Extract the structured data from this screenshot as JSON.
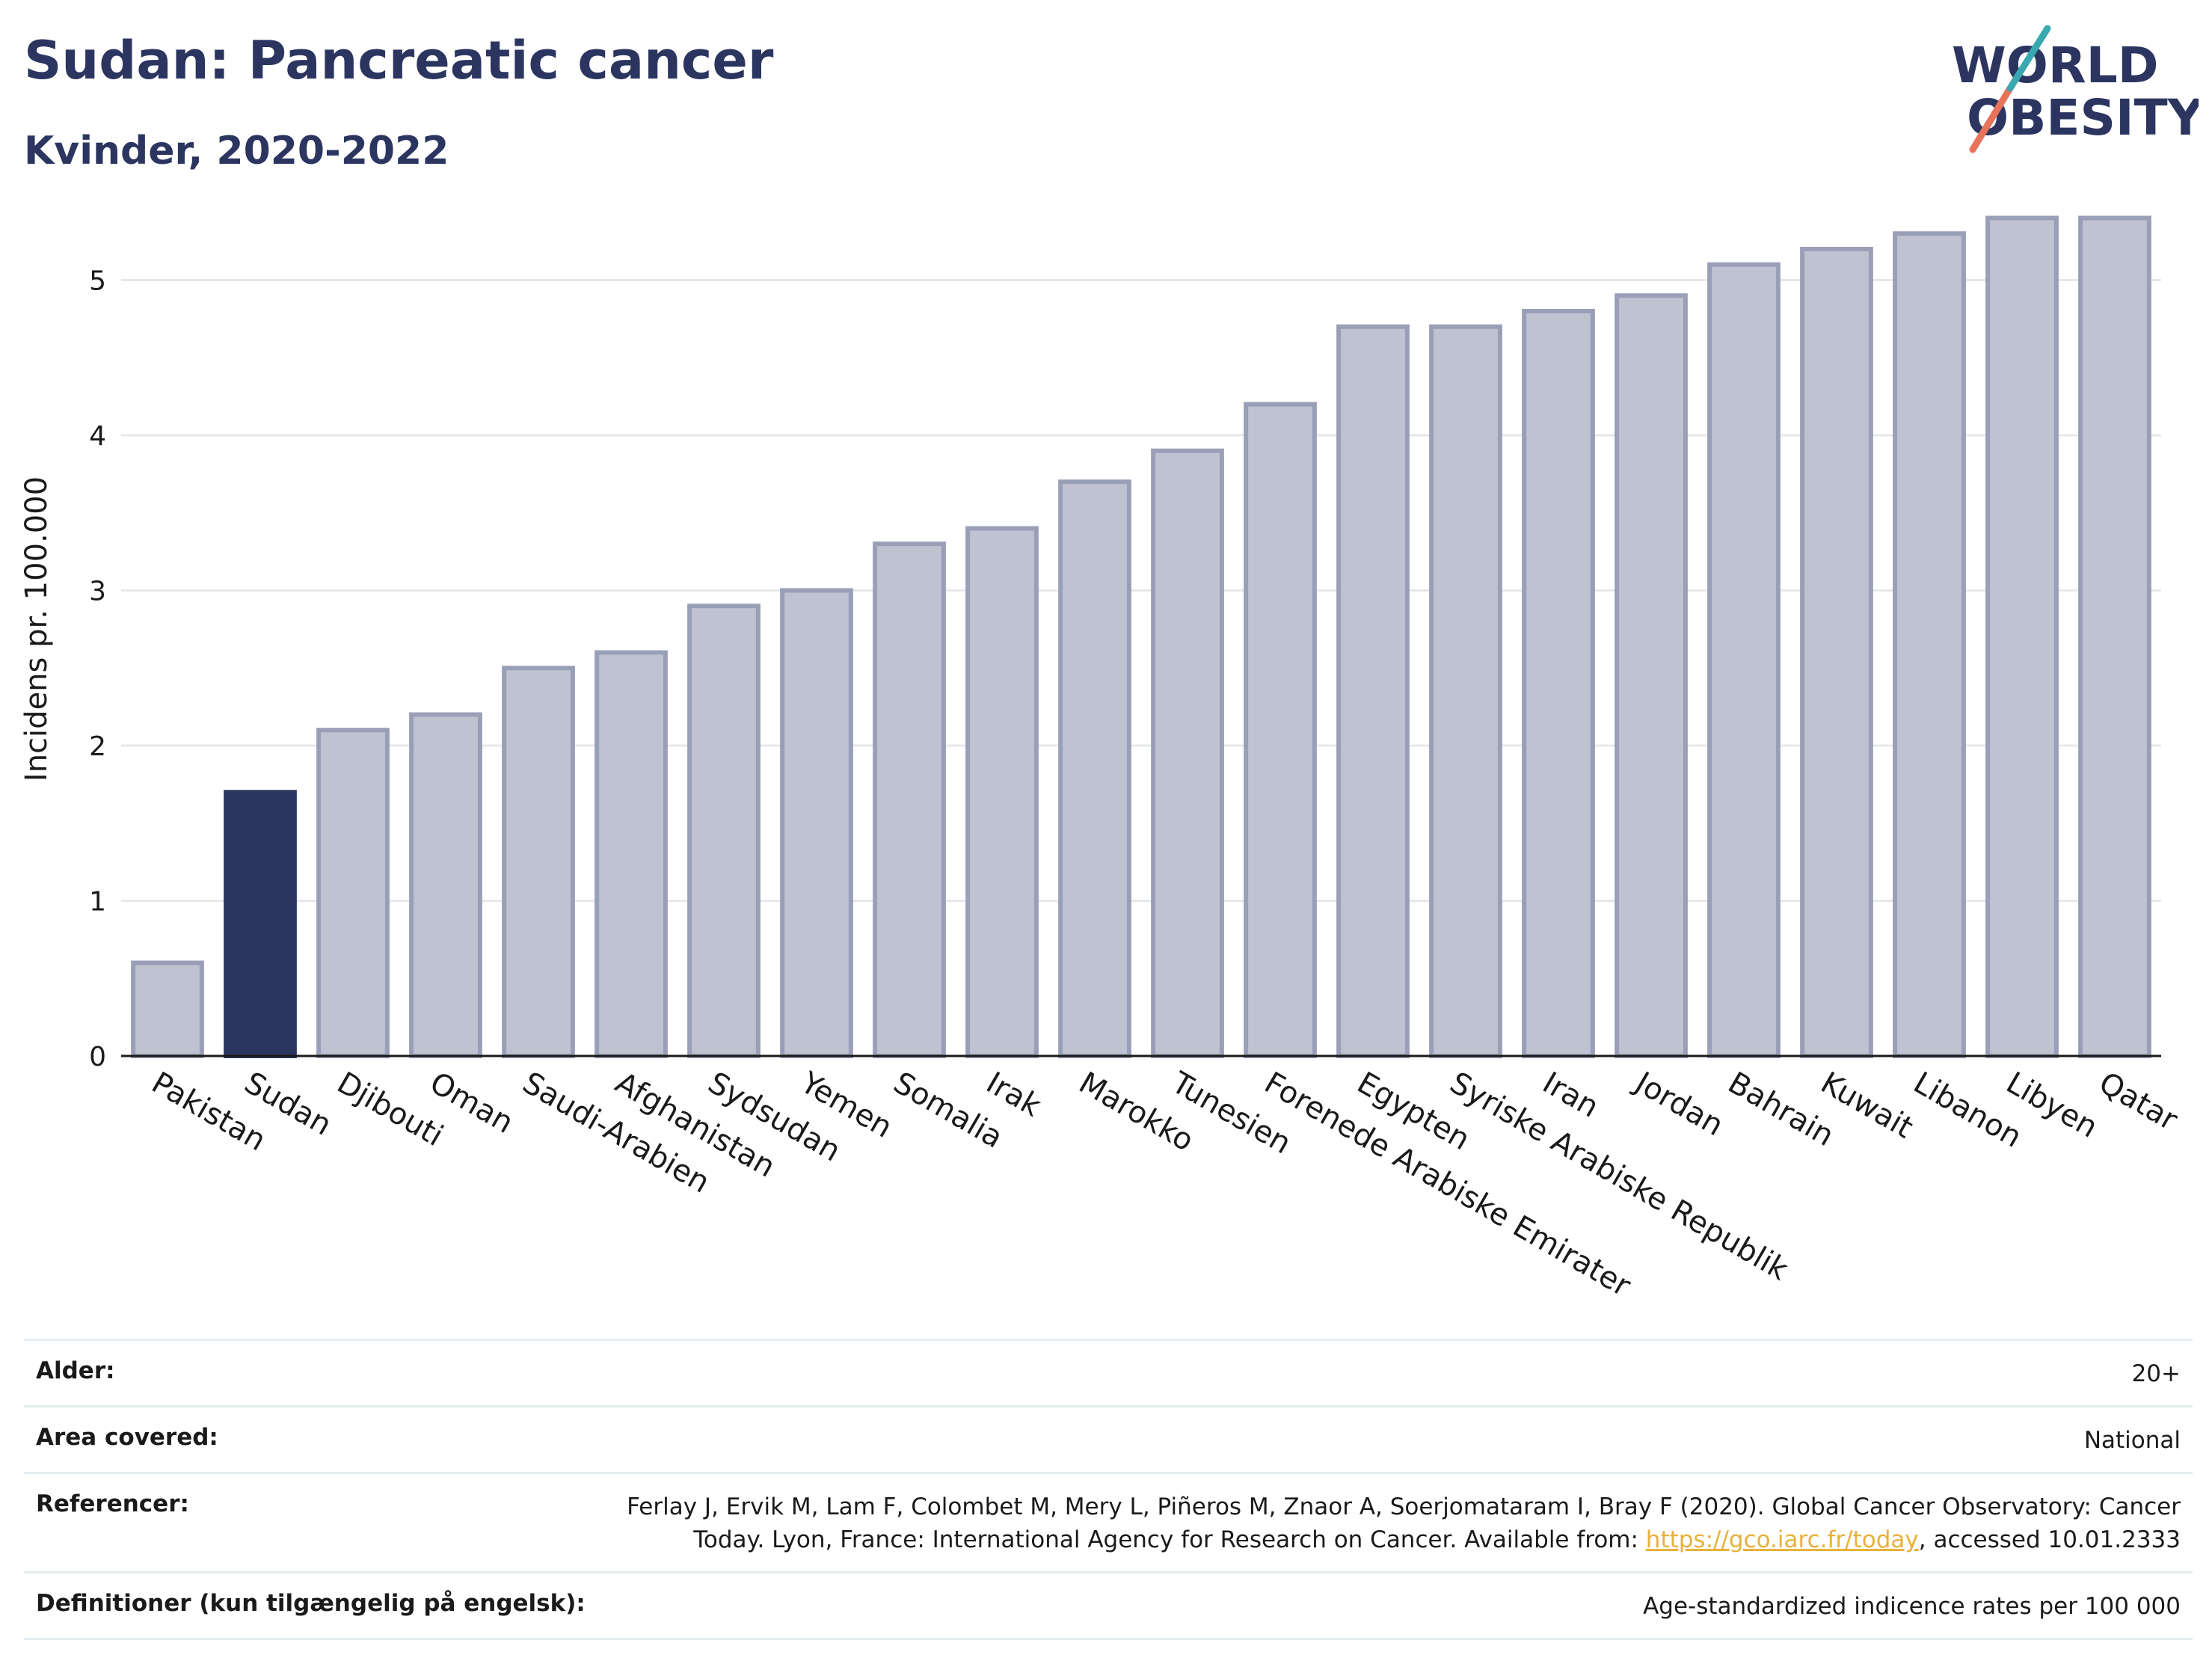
{
  "header": {
    "title": "Sudan: Pancreatic cancer",
    "subtitle": "Kvinder, 2020-2022"
  },
  "logo": {
    "line1": "WORLD",
    "line2": "OBESITY"
  },
  "colors": {
    "highlight": "#2b3560",
    "bar": "#bfc2d0",
    "bar_border": "#9a9fb8",
    "grid": "#e6e8ec",
    "title": "#2b3560",
    "link": "#e8b13a"
  },
  "chart_data": {
    "type": "bar",
    "ylabel": "Incidens pr. 100.000",
    "xlabel": "",
    "ylim": [
      0,
      5.6
    ],
    "yticks": [
      0,
      1,
      2,
      3,
      4,
      5
    ],
    "grid": true,
    "highlight_category": "Sudan",
    "categories": [
      "Pakistan",
      "Sudan",
      "Djibouti",
      "Oman",
      "Saudi-Arabien",
      "Afghanistan",
      "Sydsudan",
      "Yemen",
      "Somalia",
      "Irak",
      "Marokko",
      "Tunesien",
      "Forenede Arabiske Emirater",
      "Egypten",
      "Syriske Arabiske Republik",
      "Iran",
      "Jordan",
      "Bahrain",
      "Kuwait",
      "Libanon",
      "Libyen",
      "Qatar"
    ],
    "values": [
      0.6,
      1.7,
      2.1,
      2.2,
      2.5,
      2.6,
      2.9,
      3.0,
      3.3,
      3.4,
      3.7,
      3.9,
      4.2,
      4.7,
      4.7,
      4.8,
      4.9,
      5.1,
      5.2,
      5.3,
      5.4,
      5.4
    ]
  },
  "meta": {
    "age_label": "Alder:",
    "age_value": "20+",
    "area_label": "Area covered:",
    "area_value": "National",
    "ref_label": "Referencer:",
    "ref_text_1": "Ferlay J, Ervik M, Lam F, Colombet M, Mery L, Piñeros M, Znaor A, Soerjomataram I, Bray F (2020). Global Cancer Observatory: Cancer",
    "ref_text_2": "Today. Lyon, France: International Agency for Research on Cancer. Available from: ",
    "ref_link": "https://gco.iarc.fr/today",
    "ref_text_3": ", accessed 10.01.2333",
    "def_label": "Definitioner (kun tilgængelig på engelsk):",
    "def_value": "Age-standardized indicence rates per 100 000"
  }
}
